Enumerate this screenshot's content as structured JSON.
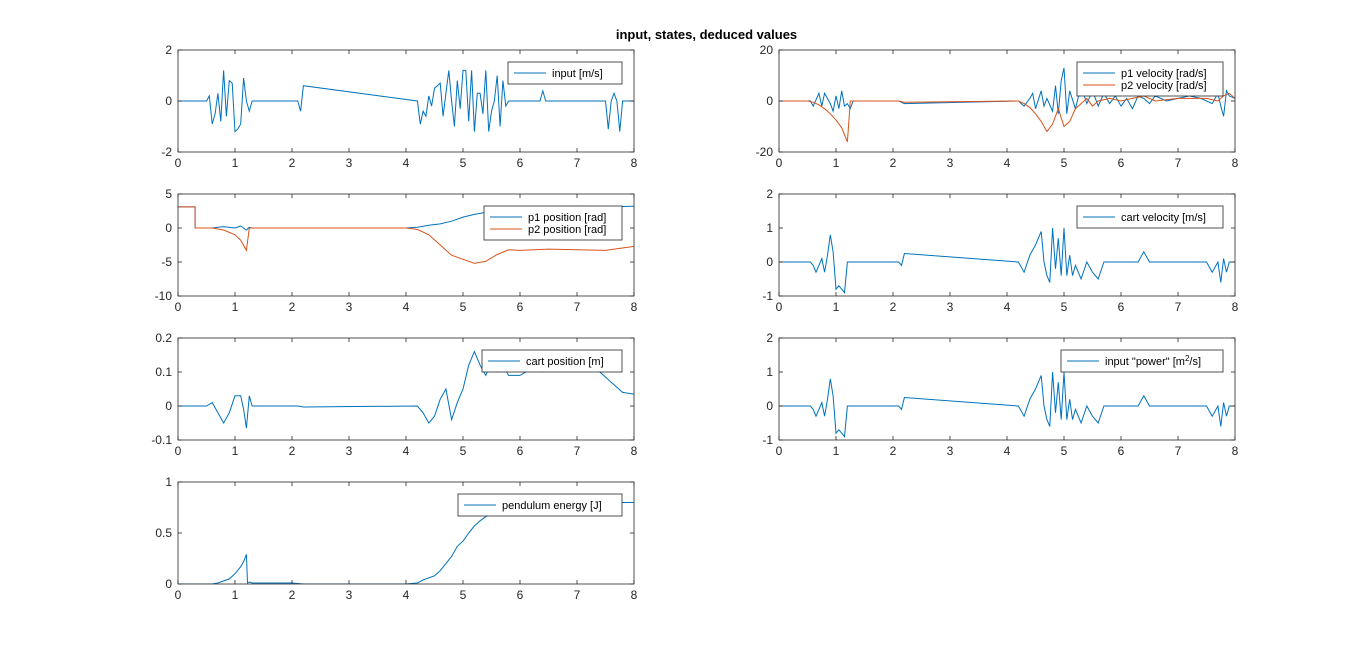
{
  "figure": {
    "title": "input, states, deduced values"
  },
  "colors": {
    "series1": "#0072BD",
    "series2": "#D95319",
    "axis": "#262626"
  },
  "chart_data": [
    {
      "id": "input",
      "type": "line",
      "xlim": [
        0,
        8
      ],
      "ylim": [
        -2,
        2
      ],
      "xticks": [
        0,
        1,
        2,
        3,
        4,
        5,
        6,
        7,
        8
      ],
      "yticks": [
        -2,
        0,
        2
      ],
      "legend_position": "top-right",
      "series": [
        {
          "name": "input [m/s]",
          "color": "#0072BD",
          "x": [
            0,
            0.5,
            0.55,
            0.6,
            0.65,
            0.7,
            0.75,
            0.8,
            0.85,
            0.9,
            0.95,
            1.0,
            1.05,
            1.1,
            1.15,
            1.2,
            1.25,
            1.3,
            2.1,
            2.15,
            2.2,
            4.2,
            4.25,
            4.3,
            4.35,
            4.4,
            4.45,
            4.5,
            4.55,
            4.6,
            4.65,
            4.7,
            4.75,
            4.8,
            4.85,
            4.9,
            4.95,
            5.0,
            5.05,
            5.1,
            5.15,
            5.2,
            5.25,
            5.3,
            5.35,
            5.4,
            5.45,
            5.5,
            5.55,
            5.6,
            5.65,
            5.7,
            5.75,
            5.8,
            5.85,
            5.9,
            6.0,
            6.3,
            6.35,
            6.4,
            6.45,
            7.5,
            7.55,
            7.6,
            7.65,
            7.7,
            7.75,
            7.8,
            7.85,
            8.0
          ],
          "y": [
            0,
            0,
            0.2,
            -0.9,
            -0.5,
            0.3,
            -0.8,
            1.2,
            -0.6,
            0.8,
            0.7,
            -1.2,
            -1.1,
            -0.9,
            0.9,
            0,
            -0.4,
            0,
            0,
            -0.4,
            0.6,
            0,
            -0.9,
            -0.4,
            -0.6,
            0.2,
            -0.2,
            0.5,
            0.6,
            0.7,
            -0.6,
            0.3,
            1.2,
            0,
            -1.0,
            0.8,
            -0.3,
            1.2,
            1.2,
            -0.8,
            1.2,
            -1.2,
            0.3,
            0.3,
            -0.5,
            1.2,
            -1.2,
            -0.4,
            0,
            1.0,
            -1.0,
            0.8,
            -0.2,
            0,
            0,
            0,
            0,
            0,
            0,
            0.4,
            0,
            0,
            -1.1,
            0,
            0.3,
            0,
            -1.2,
            0,
            0,
            0
          ]
        }
      ]
    },
    {
      "id": "velocity",
      "type": "line",
      "xlim": [
        0,
        8
      ],
      "ylim": [
        -20,
        20
      ],
      "xticks": [
        0,
        1,
        2,
        3,
        4,
        5,
        6,
        7,
        8
      ],
      "yticks": [
        -20,
        0,
        20
      ],
      "legend_position": "top-right",
      "series": [
        {
          "name": "p1 velocity [rad/s]",
          "color": "#0072BD",
          "x": [
            0,
            0.55,
            0.6,
            0.7,
            0.75,
            0.8,
            0.9,
            0.95,
            1.0,
            1.05,
            1.1,
            1.15,
            1.2,
            1.25,
            1.3,
            2.1,
            2.2,
            4.2,
            4.3,
            4.4,
            4.45,
            4.5,
            4.6,
            4.65,
            4.7,
            4.8,
            4.85,
            4.9,
            4.95,
            5.0,
            5.05,
            5.1,
            5.2,
            5.3,
            5.4,
            5.5,
            5.6,
            5.7,
            5.8,
            5.9,
            6.0,
            6.1,
            6.2,
            6.3,
            6.4,
            6.5,
            6.6,
            6.8,
            7.0,
            7.2,
            7.4,
            7.6,
            7.7,
            7.75,
            7.8,
            7.85,
            7.9,
            8.0
          ],
          "y": [
            0,
            0,
            -2,
            3,
            -2,
            3,
            -1,
            -4,
            2,
            -3,
            4,
            -2,
            -1,
            -3,
            0,
            0,
            -1,
            0,
            -2,
            1,
            3,
            -3,
            4,
            -2,
            1,
            -4,
            6,
            -5,
            8,
            13,
            -5,
            4,
            -3,
            6,
            -1,
            4,
            -2,
            3,
            -1,
            2,
            -2,
            1,
            -3,
            2,
            1,
            -1,
            2,
            0,
            1,
            2,
            1,
            -1,
            3,
            -2,
            -6,
            4,
            2,
            1
          ]
        },
        {
          "name": "p2 velocity [rad/s]",
          "color": "#D95319",
          "x": [
            0,
            0.5,
            0.6,
            0.7,
            0.8,
            0.9,
            1.0,
            1.1,
            1.2,
            1.25,
            1.3,
            2.1,
            2.2,
            4.2,
            4.3,
            4.4,
            4.5,
            4.6,
            4.7,
            4.8,
            4.9,
            5.0,
            5.1,
            5.2,
            5.3,
            5.4,
            5.5,
            5.6,
            5.8,
            6.0,
            6.2,
            6.4,
            6.6,
            7.0,
            7.5,
            7.7,
            7.8,
            7.9,
            8.0
          ],
          "y": [
            0,
            0,
            -0.5,
            -1.5,
            -3,
            -5,
            -7.5,
            -10.5,
            -16,
            0,
            0,
            0,
            -0.5,
            0,
            -1,
            -2.5,
            -5,
            -8,
            -12,
            -9,
            -3,
            -10,
            -8,
            -3,
            -1,
            1,
            -2,
            0,
            1,
            0,
            1,
            2,
            0,
            1,
            1,
            0,
            2,
            3,
            1
          ]
        }
      ]
    },
    {
      "id": "position",
      "type": "line",
      "xlim": [
        0,
        8
      ],
      "ylim": [
        -10,
        5
      ],
      "xticks": [
        0,
        1,
        2,
        3,
        4,
        5,
        6,
        7,
        8
      ],
      "yticks": [
        -10,
        -5,
        0,
        5
      ],
      "legend_position": "top-right",
      "series": [
        {
          "name": "p1 position [rad]",
          "color": "#0072BD",
          "x": [
            0,
            0.3,
            0.3,
            0.6,
            0.8,
            1.0,
            1.1,
            1.2,
            1.25,
            1.3,
            2.0,
            4.0,
            4.2,
            4.4,
            4.6,
            4.8,
            5.0,
            5.2,
            5.4,
            5.6,
            5.8,
            6.0,
            6.5,
            7.0,
            7.5,
            8.0
          ],
          "y": [
            3.1,
            3.1,
            0,
            0,
            0.2,
            0,
            0.3,
            -0.3,
            0.1,
            0,
            0,
            0,
            0.1,
            0.4,
            0.6,
            1.0,
            1.6,
            2.0,
            2.3,
            2.6,
            3.0,
            3.1,
            3.1,
            3.2,
            3.1,
            3.2
          ]
        },
        {
          "name": "p2 position [rad]",
          "color": "#D95319",
          "x": [
            0,
            0.3,
            0.3,
            0.6,
            0.8,
            1.0,
            1.1,
            1.2,
            1.25,
            1.3,
            2.0,
            4.0,
            4.2,
            4.4,
            4.6,
            4.8,
            5.0,
            5.2,
            5.4,
            5.6,
            5.8,
            6.0,
            6.5,
            7.0,
            7.5,
            8.0
          ],
          "y": [
            3.1,
            3.1,
            0,
            0,
            -0.3,
            -1.0,
            -1.8,
            -3.3,
            0,
            0,
            0,
            0,
            -0.2,
            -1.0,
            -2.5,
            -4.0,
            -4.6,
            -5.2,
            -4.9,
            -3.9,
            -3.2,
            -3.3,
            -3.1,
            -3.2,
            -3.3,
            -2.7
          ]
        }
      ]
    },
    {
      "id": "cart-velocity",
      "type": "line",
      "xlim": [
        0,
        8
      ],
      "ylim": [
        -1,
        2
      ],
      "xticks": [
        0,
        1,
        2,
        3,
        4,
        5,
        6,
        7,
        8
      ],
      "yticks": [
        -1,
        0,
        1,
        2
      ],
      "legend_position": "top-right",
      "series": [
        {
          "name": "cart velocity [m/s]",
          "color": "#0072BD",
          "x": [
            0,
            0.55,
            0.6,
            0.65,
            0.7,
            0.75,
            0.8,
            0.85,
            0.9,
            0.95,
            1.0,
            1.05,
            1.1,
            1.15,
            1.2,
            1.25,
            1.3,
            2.1,
            2.15,
            2.2,
            4.2,
            4.3,
            4.4,
            4.5,
            4.6,
            4.65,
            4.7,
            4.75,
            4.8,
            4.85,
            4.9,
            4.95,
            5.0,
            5.05,
            5.1,
            5.15,
            5.2,
            5.3,
            5.4,
            5.5,
            5.6,
            5.7,
            5.8,
            5.9,
            6.0,
            6.3,
            6.4,
            6.5,
            7.5,
            7.6,
            7.7,
            7.75,
            7.8,
            7.85,
            7.9,
            8.0
          ],
          "y": [
            0,
            0,
            -0.1,
            -0.3,
            -0.1,
            0.1,
            -0.3,
            0.2,
            0.8,
            0.3,
            -0.8,
            -0.7,
            -0.8,
            -0.9,
            0,
            0,
            0,
            0,
            -0.1,
            0.25,
            0,
            -0.3,
            0.2,
            0.5,
            0.9,
            0,
            -0.4,
            -0.6,
            1.0,
            -0.2,
            0.7,
            -0.4,
            1.0,
            -0.4,
            0.2,
            -0.4,
            -0.1,
            -0.5,
            0,
            -0.3,
            -0.5,
            0,
            0,
            0,
            0,
            0,
            0.3,
            0,
            0,
            -0.3,
            0,
            -0.6,
            0.1,
            -0.3,
            0,
            0
          ]
        }
      ]
    },
    {
      "id": "cart-position",
      "type": "line",
      "xlim": [
        0,
        8
      ],
      "ylim": [
        -0.1,
        0.2
      ],
      "xticks": [
        0,
        1,
        2,
        3,
        4,
        5,
        6,
        7,
        8
      ],
      "yticks": [
        -0.1,
        0,
        0.1,
        0.2
      ],
      "legend_position": "top-right",
      "series": [
        {
          "name": "cart position [m]",
          "color": "#0072BD",
          "x": [
            0,
            0.5,
            0.6,
            0.7,
            0.8,
            0.9,
            1.0,
            1.1,
            1.15,
            1.2,
            1.25,
            1.3,
            2.1,
            2.2,
            4.2,
            4.3,
            4.4,
            4.5,
            4.6,
            4.7,
            4.8,
            4.9,
            5.0,
            5.1,
            5.2,
            5.3,
            5.4,
            5.5,
            5.6,
            5.7,
            5.8,
            6.0,
            6.2,
            6.4,
            6.6,
            7.0,
            7.4,
            7.6,
            7.8,
            8.0
          ],
          "y": [
            0,
            0,
            0.01,
            -0.02,
            -0.05,
            -0.02,
            0.03,
            0.03,
            -0.01,
            -0.065,
            0.03,
            0,
            0,
            -0.003,
            0,
            -0.02,
            -0.05,
            -0.03,
            0.02,
            0.05,
            -0.04,
            0.01,
            0.05,
            0.12,
            0.16,
            0.12,
            0.09,
            0.13,
            0.1,
            0.12,
            0.09,
            0.09,
            0.11,
            0.1,
            0.11,
            0.12,
            0.1,
            0.07,
            0.04,
            0.035
          ]
        }
      ]
    },
    {
      "id": "input-power",
      "type": "line",
      "xlim": [
        0,
        8
      ],
      "ylim": [
        -1,
        2
      ],
      "xticks": [
        0,
        1,
        2,
        3,
        4,
        5,
        6,
        7,
        8
      ],
      "yticks": [
        -1,
        0,
        1,
        2
      ],
      "legend_position": "top-right",
      "legend_text": "input \"power\" [m",
      "legend_sup": "2",
      "legend_suffix": "/s]",
      "series": [
        {
          "name": "input \"power\" [m2/s]",
          "color": "#0072BD",
          "x": [
            0,
            0.55,
            0.6,
            0.65,
            0.7,
            0.75,
            0.8,
            0.85,
            0.9,
            0.95,
            1.0,
            1.05,
            1.1,
            1.15,
            1.2,
            1.25,
            1.3,
            2.1,
            2.15,
            2.2,
            4.2,
            4.3,
            4.4,
            4.5,
            4.6,
            4.65,
            4.7,
            4.75,
            4.8,
            4.85,
            4.9,
            4.95,
            5.0,
            5.05,
            5.1,
            5.15,
            5.2,
            5.3,
            5.4,
            5.5,
            5.6,
            5.7,
            5.8,
            5.9,
            6.0,
            6.3,
            6.4,
            6.5,
            7.5,
            7.6,
            7.7,
            7.75,
            7.8,
            7.85,
            7.9,
            8.0
          ],
          "y": [
            0,
            0,
            -0.1,
            -0.3,
            -0.1,
            0.1,
            -0.3,
            0.2,
            0.8,
            0.3,
            -0.8,
            -0.7,
            -0.8,
            -0.9,
            0,
            0,
            0,
            0,
            -0.1,
            0.25,
            0,
            -0.3,
            0.2,
            0.5,
            0.9,
            0,
            -0.4,
            -0.6,
            1.0,
            -0.2,
            0.7,
            -0.4,
            1.0,
            -0.4,
            0.2,
            -0.4,
            -0.1,
            -0.5,
            0,
            -0.3,
            -0.5,
            0,
            0,
            0,
            0,
            0,
            0.3,
            0,
            0,
            -0.3,
            0,
            -0.6,
            0.1,
            -0.3,
            0,
            0
          ]
        }
      ]
    },
    {
      "id": "energy",
      "type": "line",
      "xlim": [
        0,
        8
      ],
      "ylim": [
        0,
        1
      ],
      "xticks": [
        0,
        1,
        2,
        3,
        4,
        5,
        6,
        7,
        8
      ],
      "yticks": [
        0,
        0.5,
        1
      ],
      "legend_position": "top-right",
      "series": [
        {
          "name": "pendulum energy [J]",
          "color": "#0072BD",
          "x": [
            0,
            0.6,
            0.7,
            0.8,
            0.9,
            1.0,
            1.1,
            1.15,
            1.2,
            1.22,
            1.25,
            1.3,
            2.0,
            2.2,
            4.0,
            4.2,
            4.3,
            4.4,
            4.5,
            4.6,
            4.7,
            4.8,
            4.9,
            5.0,
            5.1,
            5.2,
            5.3,
            5.4,
            5.5,
            5.6,
            5.7,
            5.8,
            6.0,
            6.5,
            7.0,
            8.0
          ],
          "y": [
            0,
            0,
            0.01,
            0.03,
            0.05,
            0.1,
            0.17,
            0.22,
            0.29,
            0.01,
            0.02,
            0.01,
            0.01,
            0,
            0,
            0.01,
            0.04,
            0.06,
            0.08,
            0.13,
            0.2,
            0.27,
            0.37,
            0.42,
            0.5,
            0.57,
            0.62,
            0.66,
            0.69,
            0.72,
            0.74,
            0.76,
            0.78,
            0.78,
            0.79,
            0.8
          ]
        }
      ]
    }
  ]
}
